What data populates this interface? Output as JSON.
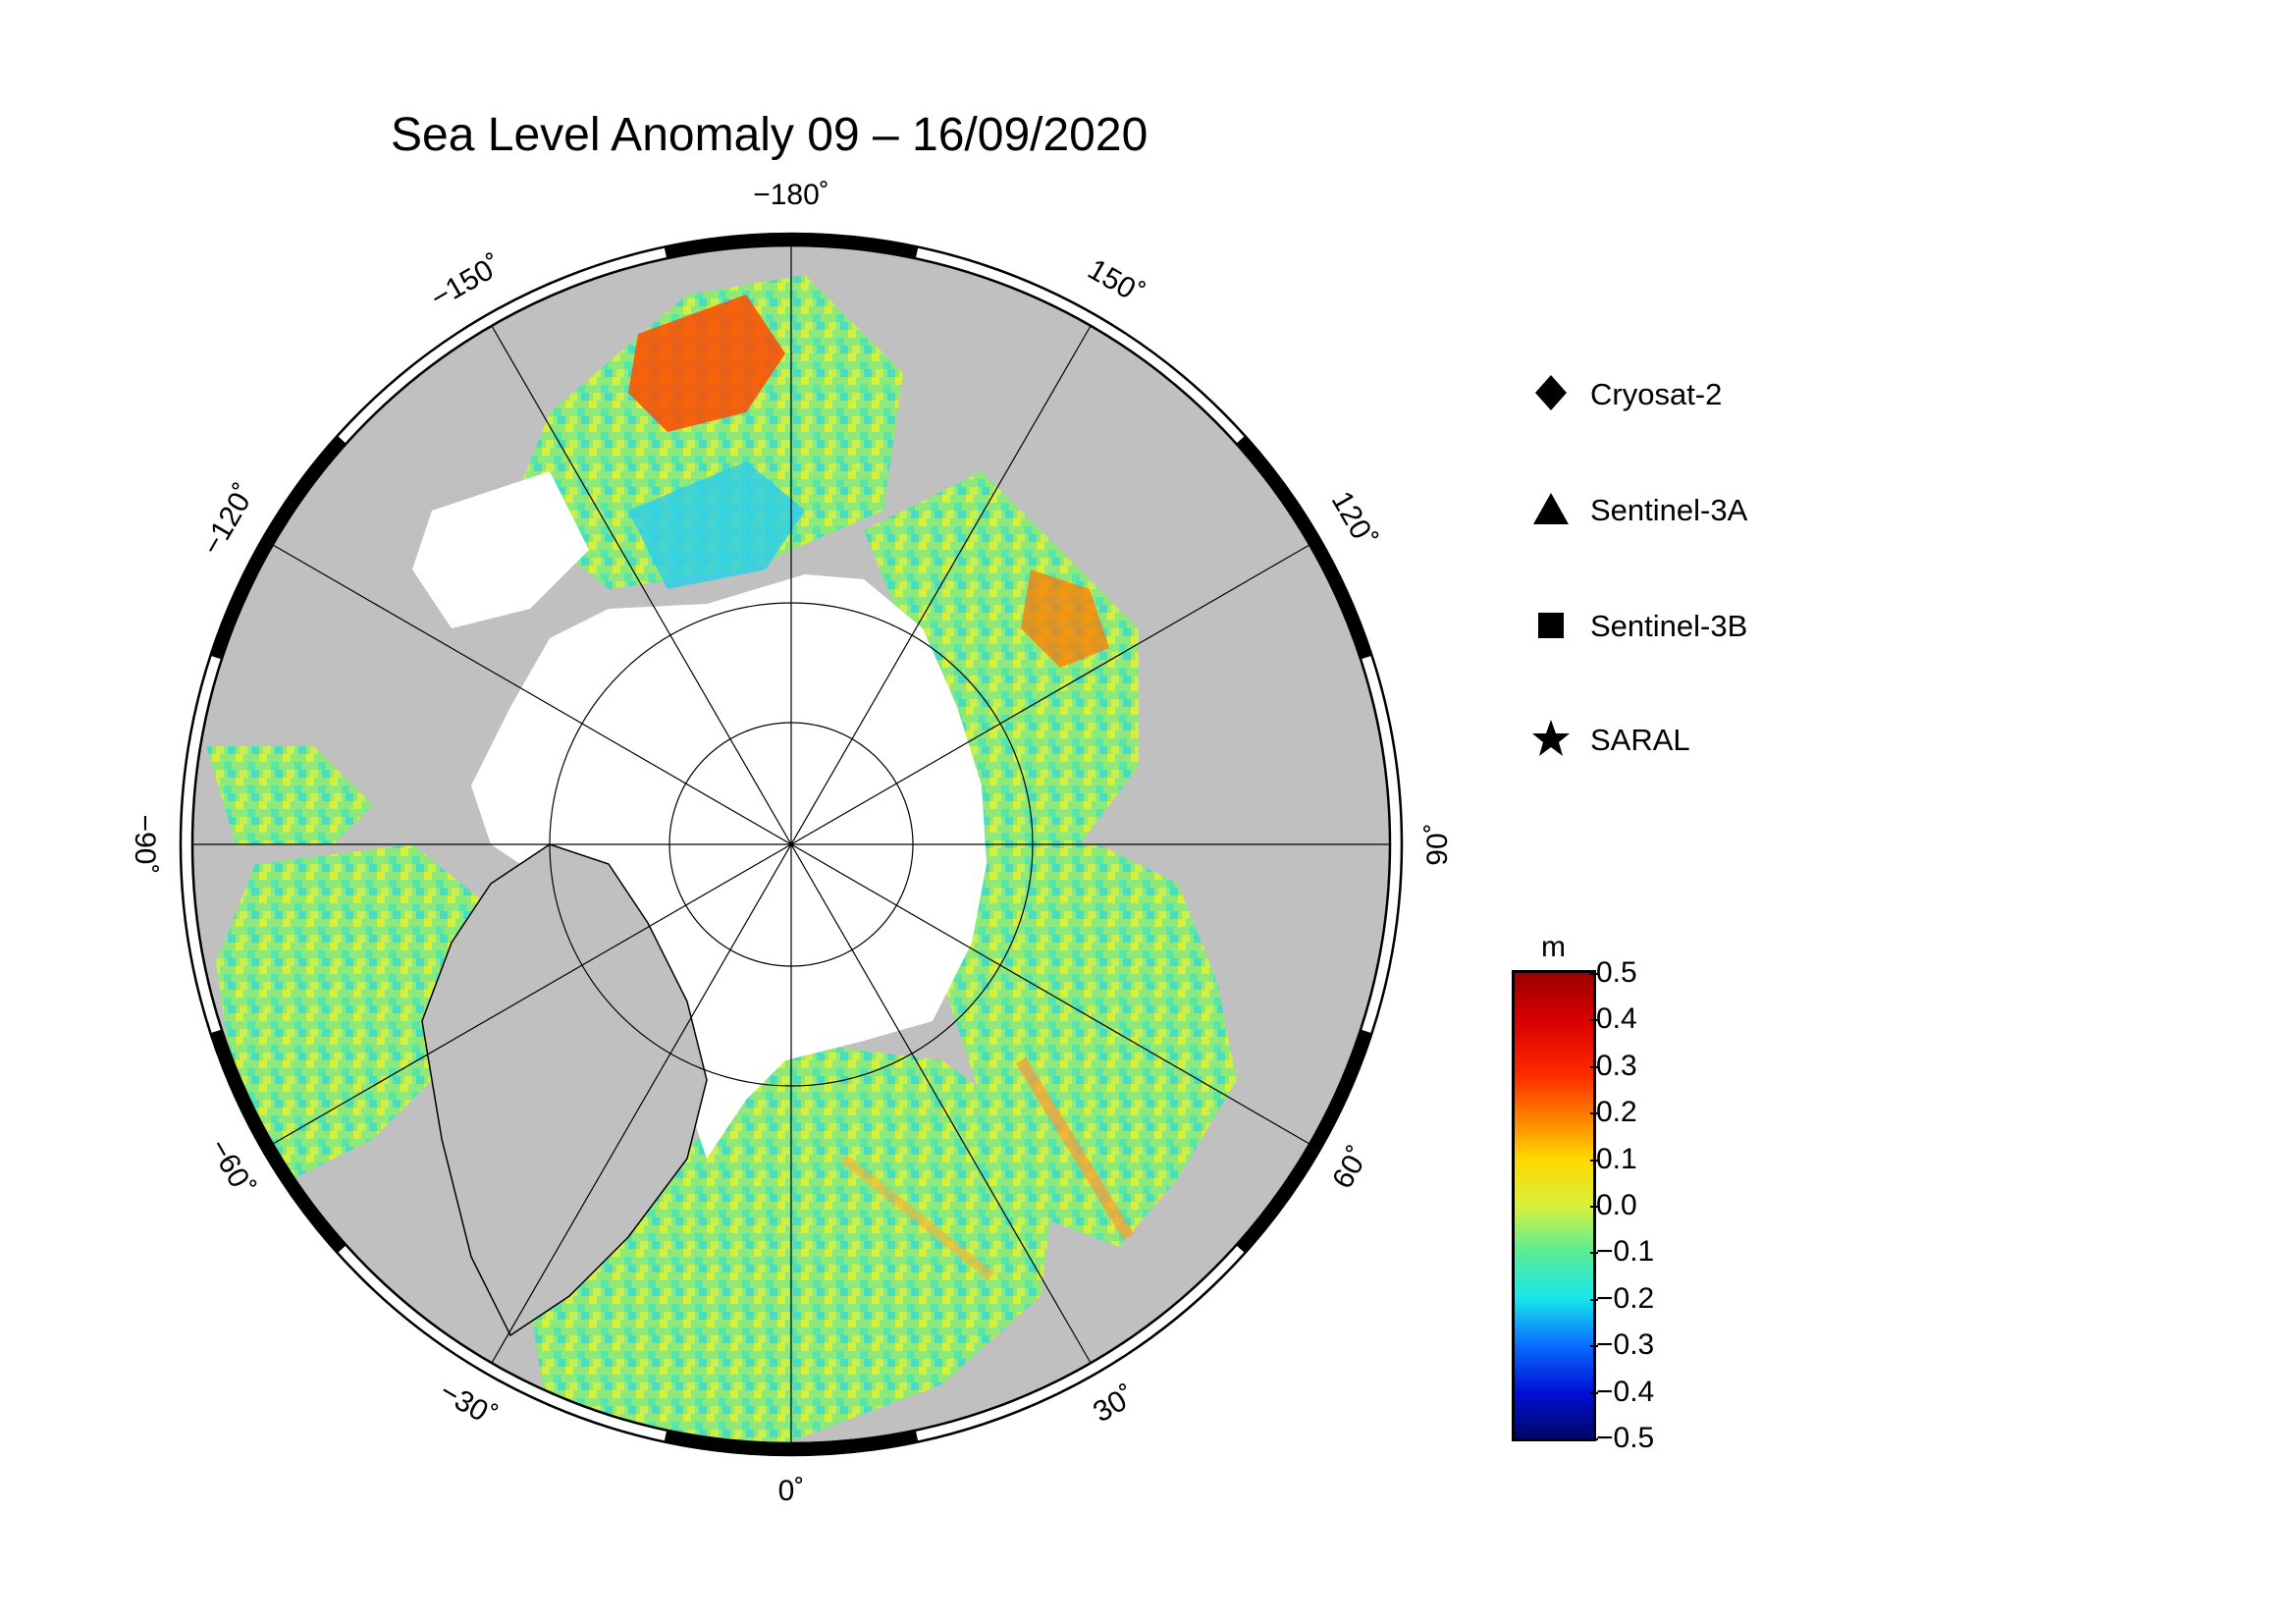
{
  "title": "Sea Level Anomaly 09 – 16/09/2020",
  "map": {
    "projection": "north-polar-stereographic",
    "longitude_labels": [
      {
        "lon": -180,
        "text": "−180˚"
      },
      {
        "lon": -150,
        "text": "−150˚"
      },
      {
        "lon": -120,
        "text": "−120˚"
      },
      {
        "lon": -90,
        "text": "−90˚"
      },
      {
        "lon": -60,
        "text": "−60˚"
      },
      {
        "lon": -30,
        "text": "−30˚"
      },
      {
        "lon": 0,
        "text": "0˚"
      },
      {
        "lon": 30,
        "text": "30˚"
      },
      {
        "lon": 60,
        "text": "60˚"
      },
      {
        "lon": 90,
        "text": "90˚"
      },
      {
        "lon": 120,
        "text": "120˚"
      },
      {
        "lon": 150,
        "text": "150˚"
      }
    ],
    "colors": {
      "land": "#c0c0c0",
      "ice": "#ffffff",
      "frame": "#000000"
    }
  },
  "legend": {
    "items": [
      {
        "symbol": "diamond-icon",
        "label": "Cryosat-2"
      },
      {
        "symbol": "triangle-icon",
        "label": "Sentinel-3A"
      },
      {
        "symbol": "square-icon",
        "label": "Sentinel-3B"
      },
      {
        "symbol": "star-icon",
        "label": "SARAL"
      }
    ]
  },
  "colorbar": {
    "unit": "m",
    "range": [
      -0.5,
      0.5
    ],
    "ticks": [
      "0.5",
      "0.4",
      "0.3",
      "0.2",
      "0.1",
      "0.0",
      "−0.1",
      "−0.2",
      "−0.3",
      "−0.4",
      "−0.5"
    ],
    "colors": [
      "#9a0000",
      "#ff2a00",
      "#ffd800",
      "#58ee96",
      "#18e6ec",
      "#0010d8",
      "#00066a"
    ]
  }
}
